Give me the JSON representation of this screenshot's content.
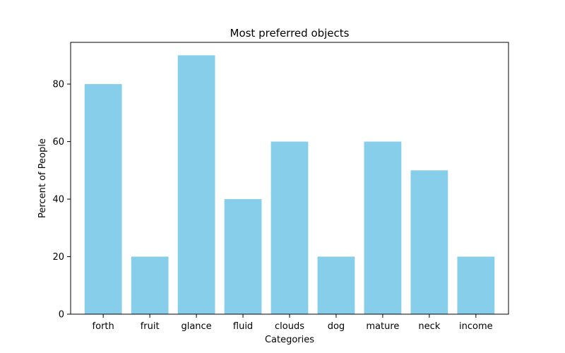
{
  "chart_data": {
    "type": "bar",
    "title": "Most preferred objects",
    "xlabel": "Categories",
    "ylabel": "Percent of People",
    "categories": [
      "forth",
      "fruit",
      "glance",
      "fluid",
      "clouds",
      "dog",
      "mature",
      "neck",
      "income"
    ],
    "values": [
      80,
      20,
      90,
      40,
      60,
      20,
      60,
      50,
      20
    ],
    "ylim": [
      0,
      94.5
    ],
    "yticks": [
      0,
      20,
      40,
      60,
      80
    ],
    "bar_color": "#87CEEB",
    "grid": false,
    "legend": "none"
  }
}
